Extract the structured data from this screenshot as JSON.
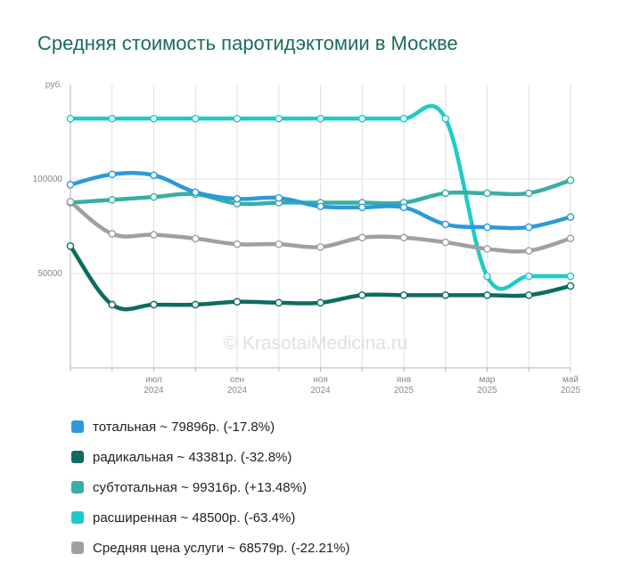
{
  "title": "Средняя стоимость паротидэктомии в Москве",
  "watermark": "© KrasotaiMedicina.ru",
  "colors": {
    "total": "#2b9ad9",
    "radical": "#0e6b5f",
    "subtotal": "#3aaea4",
    "extended": "#1ecbc8",
    "average": "#a0a0a0"
  },
  "legend": [
    {
      "key": "total",
      "label": "тотальная ~ 79896р. (-17.8%)"
    },
    {
      "key": "radical",
      "label": "радикальная ~ 43381р. (-32.8%)"
    },
    {
      "key": "subtotal",
      "label": "субтотальная ~ 99316р. (+13.48%)"
    },
    {
      "key": "extended",
      "label": "расширенная ~ 48500р. (-63.4%)"
    },
    {
      "key": "average",
      "label": "Средняя цена услуги ~ 68579р. (-22.21%)"
    }
  ],
  "chart_data": {
    "type": "line",
    "title": "Средняя стоимость паротидэктомии в Москве",
    "ylabel": "руб.",
    "y_ticks": [
      50000,
      100000
    ],
    "ylim": [
      0,
      150000
    ],
    "grid": true,
    "x": [
      "2024-05",
      "2024-06",
      "2024-07",
      "2024-08",
      "2024-09",
      "2024-10",
      "2024-11",
      "2024-12",
      "2025-01",
      "2025-02",
      "2025-03",
      "2025-04",
      "2025-05"
    ],
    "x_tick_labels": [
      {
        "month": "июл",
        "year": "2024"
      },
      {
        "month": "сен",
        "year": "2024"
      },
      {
        "month": "ноя",
        "year": "2024"
      },
      {
        "month": "янв",
        "year": "2025"
      },
      {
        "month": "мар",
        "year": "2025"
      },
      {
        "month": "май",
        "year": "2025"
      }
    ],
    "series": [
      {
        "key": "extended",
        "name": "расширенная",
        "values": [
          132000,
          132000,
          132000,
          132000,
          132000,
          132000,
          132000,
          132000,
          132000,
          132000,
          48500,
          48500,
          48500
        ]
      },
      {
        "key": "subtotal",
        "name": "субтотальная",
        "values": [
          87500,
          89000,
          90500,
          92000,
          87000,
          87500,
          87500,
          87500,
          87500,
          92500,
          92500,
          92500,
          99316
        ]
      },
      {
        "key": "total",
        "name": "тотальная",
        "values": [
          97000,
          102500,
          102000,
          93000,
          89500,
          90000,
          85500,
          85000,
          85000,
          76000,
          74500,
          74500,
          79896
        ]
      },
      {
        "key": "average",
        "name": "Средняя цена услуги",
        "values": [
          88000,
          71000,
          70500,
          68500,
          65500,
          65500,
          64000,
          69000,
          69000,
          66500,
          63000,
          62000,
          68579
        ]
      },
      {
        "key": "radical",
        "name": "радикальная",
        "values": [
          64500,
          33500,
          33500,
          33500,
          35000,
          34500,
          34500,
          38500,
          38500,
          38500,
          38500,
          38500,
          43381
        ]
      }
    ]
  }
}
